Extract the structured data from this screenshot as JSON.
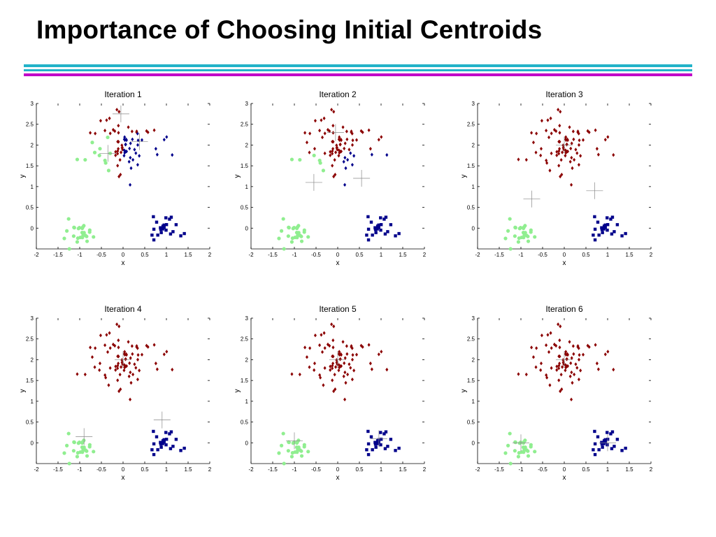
{
  "title": "Importance of Choosing Initial Centroids",
  "colors": {
    "rule_cyan": "#22b3c9",
    "rule_magenta": "#c000c8",
    "cluster_red": "#8b0000",
    "cluster_green": "#90ee90",
    "cluster_blue": "#00008b"
  },
  "chart_data": [
    {
      "type": "scatter",
      "title": "Iteration 1",
      "xlabel": "x",
      "ylabel": "y",
      "xlim": [
        -2,
        2
      ],
      "ylim": [
        -0.5,
        3
      ],
      "xticks": [
        "-2",
        "-1.5",
        "-1",
        "-0.5",
        "0",
        "0.5",
        "1",
        "1.5",
        "2"
      ],
      "yticks": [
        "0",
        "0.5",
        "1",
        "1.5",
        "2",
        "2.5",
        "3"
      ],
      "centroids": [
        [
          -0.05,
          2.75
        ],
        [
          -0.35,
          1.8
        ],
        [
          0.38,
          2.08
        ]
      ]
    },
    {
      "type": "scatter",
      "title": "Iteration 2",
      "xlabel": "x",
      "ylabel": "y",
      "xlim": [
        -2,
        2
      ],
      "ylim": [
        -0.5,
        3
      ],
      "xticks": [
        "-2",
        "-1.5",
        "-1",
        "-0.5",
        "0",
        "0.5",
        "1",
        "1.5",
        "2"
      ],
      "yticks": [
        "0",
        "0.5",
        "1",
        "1.5",
        "2",
        "2.5",
        "3"
      ],
      "centroids": [
        [
          -0.05,
          2.3
        ],
        [
          -0.55,
          1.1
        ],
        [
          0.55,
          1.2
        ]
      ]
    },
    {
      "type": "scatter",
      "title": "Iteration 3",
      "xlabel": "x",
      "ylabel": "y",
      "xlim": [
        -2,
        2
      ],
      "ylim": [
        -0.5,
        3
      ],
      "xticks": [
        "-2",
        "-1.5",
        "-1",
        "-0.5",
        "0",
        "0.5",
        "1",
        "1.5",
        "2"
      ],
      "yticks": [
        "0",
        "0.5",
        "1",
        "1.5",
        "2",
        "2.5",
        "3"
      ],
      "centroids": [
        [
          0.0,
          2.0
        ],
        [
          -0.75,
          0.7
        ],
        [
          0.7,
          0.9
        ]
      ]
    },
    {
      "type": "scatter",
      "title": "Iteration 4",
      "xlabel": "x",
      "ylabel": "y",
      "xlim": [
        -2,
        2
      ],
      "ylim": [
        -0.5,
        3
      ],
      "xticks": [
        "-2",
        "-1.5",
        "-1",
        "-0.5",
        "0",
        "0.5",
        "1",
        "1.5",
        "2"
      ],
      "yticks": [
        "0",
        "0.5",
        "1",
        "1.5",
        "2",
        "2.5",
        "3"
      ],
      "centroids": [
        [
          0.0,
          2.0
        ],
        [
          -0.9,
          0.15
        ],
        [
          0.9,
          0.55
        ]
      ]
    },
    {
      "type": "scatter",
      "title": "Iteration 5",
      "xlabel": "x",
      "ylabel": "y",
      "xlim": [
        -2,
        2
      ],
      "ylim": [
        -0.5,
        3
      ],
      "xticks": [
        "-2",
        "-1.5",
        "-1",
        "-0.5",
        "0",
        "0.5",
        "1",
        "1.5",
        "2"
      ],
      "yticks": [
        "0",
        "0.5",
        "1",
        "1.5",
        "2",
        "2.5",
        "3"
      ],
      "centroids": [
        [
          0.0,
          2.0
        ],
        [
          -1.0,
          0.05
        ],
        [
          0.95,
          0.1
        ]
      ]
    },
    {
      "type": "scatter",
      "title": "Iteration 6",
      "xlabel": "x",
      "ylabel": "y",
      "xlim": [
        -2,
        2
      ],
      "ylim": [
        -0.5,
        3
      ],
      "xticks": [
        "-2",
        "-1.5",
        "-1",
        "-0.5",
        "0",
        "0.5",
        "1",
        "1.5",
        "2"
      ],
      "yticks": [
        "0",
        "0.5",
        "1",
        "1.5",
        "2",
        "2.5",
        "3"
      ],
      "centroids": [
        [
          0.0,
          2.0
        ],
        [
          -1.0,
          0.0
        ],
        [
          1.0,
          0.0
        ]
      ]
    }
  ]
}
